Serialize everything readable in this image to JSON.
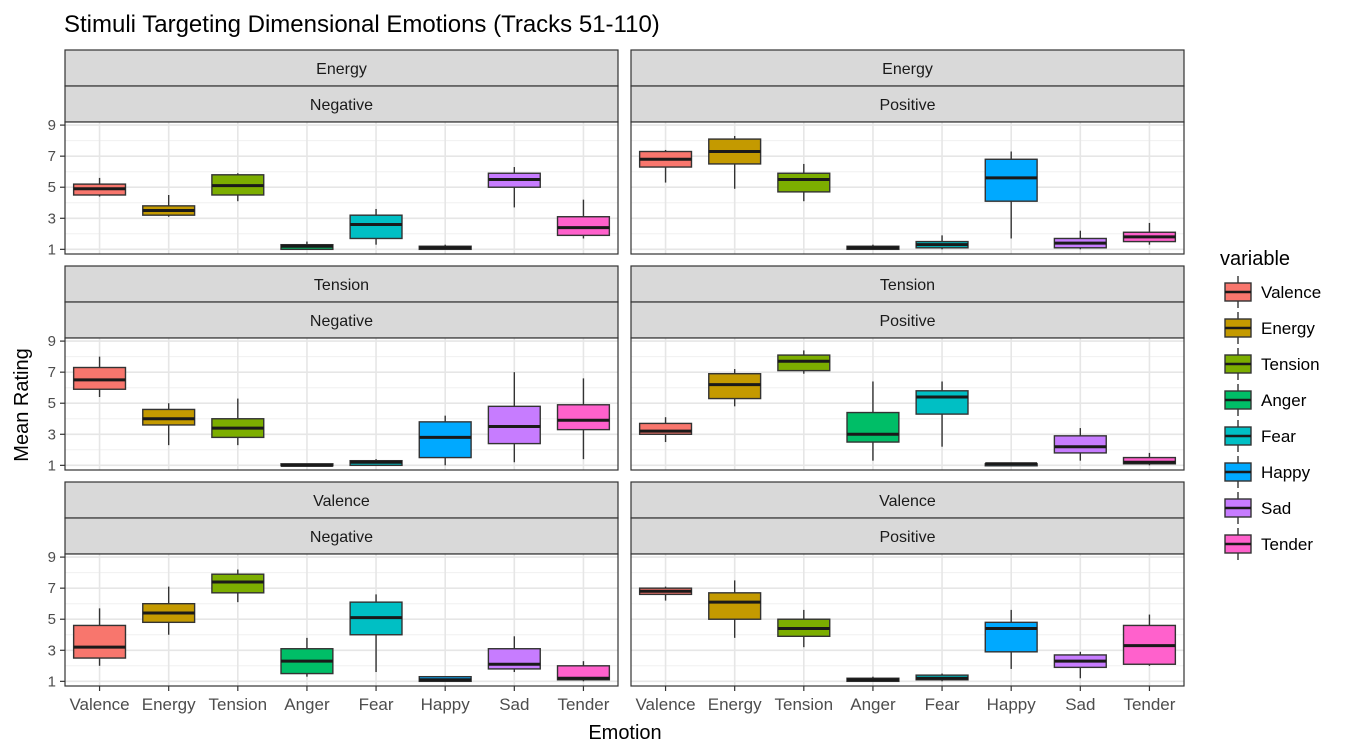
{
  "chart_data": {
    "type": "boxplot",
    "title": "Stimuli Targeting Dimensional Emotions (Tracks 51-110)",
    "xlabel": "Emotion",
    "ylabel": "Mean Rating",
    "categories": [
      "Valence",
      "Energy",
      "Tension",
      "Anger",
      "Fear",
      "Happy",
      "Sad",
      "Tender"
    ],
    "y_ticks": [
      1,
      3,
      5,
      7,
      9
    ],
    "ylim": [
      0.7,
      9.2
    ],
    "grid": true,
    "legend": {
      "title": "variable",
      "position": "right",
      "entries": [
        "Valence",
        "Energy",
        "Tension",
        "Anger",
        "Fear",
        "Happy",
        "Sad",
        "Tender"
      ]
    },
    "colors": {
      "Valence": "#F8766D",
      "Energy": "#C49A00",
      "Tension": "#7CAE00",
      "Anger": "#00BE67",
      "Fear": "#00BFC4",
      "Happy": "#00A9FF",
      "Sad": "#C77CFF",
      "Tender": "#FF61CC"
    },
    "facets": [
      {
        "row": "Energy",
        "col": "Negative",
        "boxes": [
          {
            "min": 4.4,
            "q1": 4.5,
            "median": 4.9,
            "q3": 5.2,
            "max": 5.6
          },
          {
            "min": 3.1,
            "q1": 3.2,
            "median": 3.5,
            "q3": 3.8,
            "max": 4.5
          },
          {
            "min": 4.1,
            "q1": 4.5,
            "median": 5.1,
            "q3": 5.8,
            "max": 5.9
          },
          {
            "min": 1.0,
            "q1": 1.0,
            "median": 1.2,
            "q3": 1.3,
            "max": 1.5
          },
          {
            "min": 1.3,
            "q1": 1.7,
            "median": 2.6,
            "q3": 3.2,
            "max": 3.6
          },
          {
            "min": 1.0,
            "q1": 1.0,
            "median": 1.1,
            "q3": 1.2,
            "max": 1.3
          },
          {
            "min": 3.7,
            "q1": 5.0,
            "median": 5.5,
            "q3": 5.9,
            "max": 6.3
          },
          {
            "min": 1.7,
            "q1": 1.9,
            "median": 2.4,
            "q3": 3.1,
            "max": 4.2
          }
        ]
      },
      {
        "row": "Energy",
        "col": "Positive",
        "boxes": [
          {
            "min": 5.3,
            "q1": 6.3,
            "median": 6.8,
            "q3": 7.3,
            "max": 7.4
          },
          {
            "min": 4.9,
            "q1": 6.5,
            "median": 7.3,
            "q3": 8.1,
            "max": 8.3
          },
          {
            "min": 4.1,
            "q1": 4.7,
            "median": 5.5,
            "q3": 5.9,
            "max": 6.5
          },
          {
            "min": 1.0,
            "q1": 1.0,
            "median": 1.1,
            "q3": 1.2,
            "max": 1.3
          },
          {
            "min": 1.0,
            "q1": 1.1,
            "median": 1.3,
            "q3": 1.5,
            "max": 1.9
          },
          {
            "min": 1.7,
            "q1": 4.1,
            "median": 5.6,
            "q3": 6.8,
            "max": 7.3
          },
          {
            "min": 1.0,
            "q1": 1.1,
            "median": 1.4,
            "q3": 1.7,
            "max": 2.2
          },
          {
            "min": 1.3,
            "q1": 1.5,
            "median": 1.8,
            "q3": 2.1,
            "max": 2.7
          }
        ]
      },
      {
        "row": "Tension",
        "col": "Negative",
        "boxes": [
          {
            "min": 5.4,
            "q1": 5.9,
            "median": 6.5,
            "q3": 7.3,
            "max": 8.0
          },
          {
            "min": 2.3,
            "q1": 3.6,
            "median": 4.0,
            "q3": 4.6,
            "max": 5.0
          },
          {
            "min": 2.3,
            "q1": 2.8,
            "median": 3.4,
            "q3": 4.0,
            "max": 5.3
          },
          {
            "min": 1.0,
            "q1": 1.0,
            "median": 1.0,
            "q3": 1.1,
            "max": 1.1
          },
          {
            "min": 1.0,
            "q1": 1.0,
            "median": 1.2,
            "q3": 1.3,
            "max": 1.4
          },
          {
            "min": 1.0,
            "q1": 1.5,
            "median": 2.8,
            "q3": 3.8,
            "max": 4.2
          },
          {
            "min": 1.2,
            "q1": 2.4,
            "median": 3.5,
            "q3": 4.8,
            "max": 7.0
          },
          {
            "min": 1.4,
            "q1": 3.3,
            "median": 3.9,
            "q3": 4.9,
            "max": 6.6
          }
        ]
      },
      {
        "row": "Tension",
        "col": "Positive",
        "boxes": [
          {
            "min": 2.5,
            "q1": 3.0,
            "median": 3.2,
            "q3": 3.7,
            "max": 4.1
          },
          {
            "min": 4.8,
            "q1": 5.3,
            "median": 6.2,
            "q3": 6.9,
            "max": 7.2
          },
          {
            "min": 6.9,
            "q1": 7.1,
            "median": 7.7,
            "q3": 8.1,
            "max": 8.4
          },
          {
            "min": 1.3,
            "q1": 2.5,
            "median": 3.0,
            "q3": 4.4,
            "max": 6.4
          },
          {
            "min": 2.2,
            "q1": 4.3,
            "median": 5.4,
            "q3": 5.8,
            "max": 6.4
          },
          {
            "min": 1.0,
            "q1": 1.0,
            "median": 1.1,
            "q3": 1.1,
            "max": 1.1
          },
          {
            "min": 1.3,
            "q1": 1.8,
            "median": 2.2,
            "q3": 2.9,
            "max": 3.4
          },
          {
            "min": 1.0,
            "q1": 1.1,
            "median": 1.2,
            "q3": 1.5,
            "max": 1.8
          }
        ]
      },
      {
        "row": "Valence",
        "col": "Negative",
        "boxes": [
          {
            "min": 2.0,
            "q1": 2.5,
            "median": 3.2,
            "q3": 4.6,
            "max": 5.7
          },
          {
            "min": 4.0,
            "q1": 4.8,
            "median": 5.4,
            "q3": 6.0,
            "max": 7.1
          },
          {
            "min": 6.1,
            "q1": 6.7,
            "median": 7.4,
            "q3": 7.9,
            "max": 8.2
          },
          {
            "min": 1.3,
            "q1": 1.5,
            "median": 2.3,
            "q3": 3.1,
            "max": 3.8
          },
          {
            "min": 1.6,
            "q1": 4.0,
            "median": 5.1,
            "q3": 6.1,
            "max": 6.6
          },
          {
            "min": 1.0,
            "q1": 1.0,
            "median": 1.1,
            "q3": 1.3,
            "max": 1.3
          },
          {
            "min": 1.6,
            "q1": 1.8,
            "median": 2.1,
            "q3": 3.1,
            "max": 3.9
          },
          {
            "min": 1.0,
            "q1": 1.1,
            "median": 1.2,
            "q3": 2.0,
            "max": 2.3
          }
        ]
      },
      {
        "row": "Valence",
        "col": "Positive",
        "boxes": [
          {
            "min": 6.2,
            "q1": 6.6,
            "median": 6.8,
            "q3": 7.0,
            "max": 7.1
          },
          {
            "min": 3.8,
            "q1": 5.0,
            "median": 6.1,
            "q3": 6.7,
            "max": 7.5
          },
          {
            "min": 3.2,
            "q1": 3.9,
            "median": 4.4,
            "q3": 5.0,
            "max": 5.6
          },
          {
            "min": 1.0,
            "q1": 1.0,
            "median": 1.1,
            "q3": 1.2,
            "max": 1.3
          },
          {
            "min": 1.0,
            "q1": 1.1,
            "median": 1.2,
            "q3": 1.4,
            "max": 1.5
          },
          {
            "min": 1.8,
            "q1": 2.9,
            "median": 4.4,
            "q3": 4.8,
            "max": 5.6
          },
          {
            "min": 1.2,
            "q1": 1.9,
            "median": 2.3,
            "q3": 2.7,
            "max": 2.9
          },
          {
            "min": 2.0,
            "q1": 2.1,
            "median": 3.3,
            "q3": 4.6,
            "max": 5.3
          }
        ]
      }
    ]
  }
}
